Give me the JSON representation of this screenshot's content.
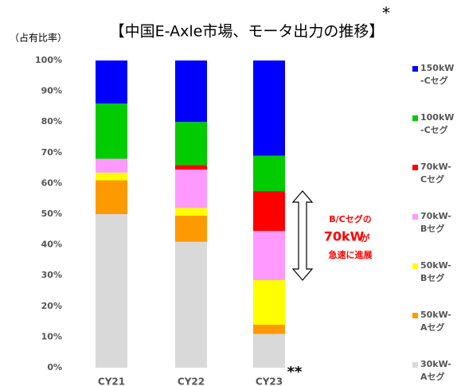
{
  "chart_data": {
    "type": "stacked_bar",
    "title": "【中国E-Axle市場、モータ出力の推移】",
    "title_note": "*",
    "y_axis_label": "（占有比率）",
    "categories": [
      "CY21",
      "CY22",
      "CY23"
    ],
    "category_note": "**",
    "series": [
      {
        "name": "30kW-\nAセグ",
        "color": "#d9d9d9",
        "values": [
          50,
          41,
          11
        ]
      },
      {
        "name": "50kW-\nAセグ",
        "color": "#ff9900",
        "values": [
          11,
          8.5,
          3
        ]
      },
      {
        "name": "50kW-\nBセグ",
        "color": "#ffff00",
        "values": [
          2.5,
          2.5,
          14.5
        ]
      },
      {
        "name": "70kW-\nBセグ",
        "color": "#ff99ff",
        "values": [
          4.5,
          12.5,
          16
        ]
      },
      {
        "name": "70kW-\nCセグ",
        "color": "#ff0000",
        "values": [
          0,
          1.5,
          13
        ]
      },
      {
        "name": "100kW\n-Cセグ",
        "color": "#00cc00",
        "values": [
          18,
          14,
          11.5
        ]
      },
      {
        "name": "150kW\n-Cセグ",
        "color": "#0000ff",
        "values": [
          14,
          20,
          31
        ]
      }
    ],
    "ylim": [
      0,
      100
    ],
    "yticks": [
      {
        "value": 0,
        "label": "0%"
      },
      {
        "value": 10,
        "label": "10%"
      },
      {
        "value": 20,
        "label": "20%"
      },
      {
        "value": 30,
        "label": "30%"
      },
      {
        "value": 40,
        "label": "40%"
      },
      {
        "value": 50,
        "label": "50%"
      },
      {
        "value": 60,
        "label": "60%"
      },
      {
        "value": 70,
        "label": "70%"
      },
      {
        "value": 80,
        "label": "80%"
      },
      {
        "value": 90,
        "label": "90%"
      },
      {
        "value": 100,
        "label": "100%"
      }
    ],
    "annotation": [
      "B/Cセグの",
      "70kW",
      "が",
      "急速に進展"
    ]
  }
}
